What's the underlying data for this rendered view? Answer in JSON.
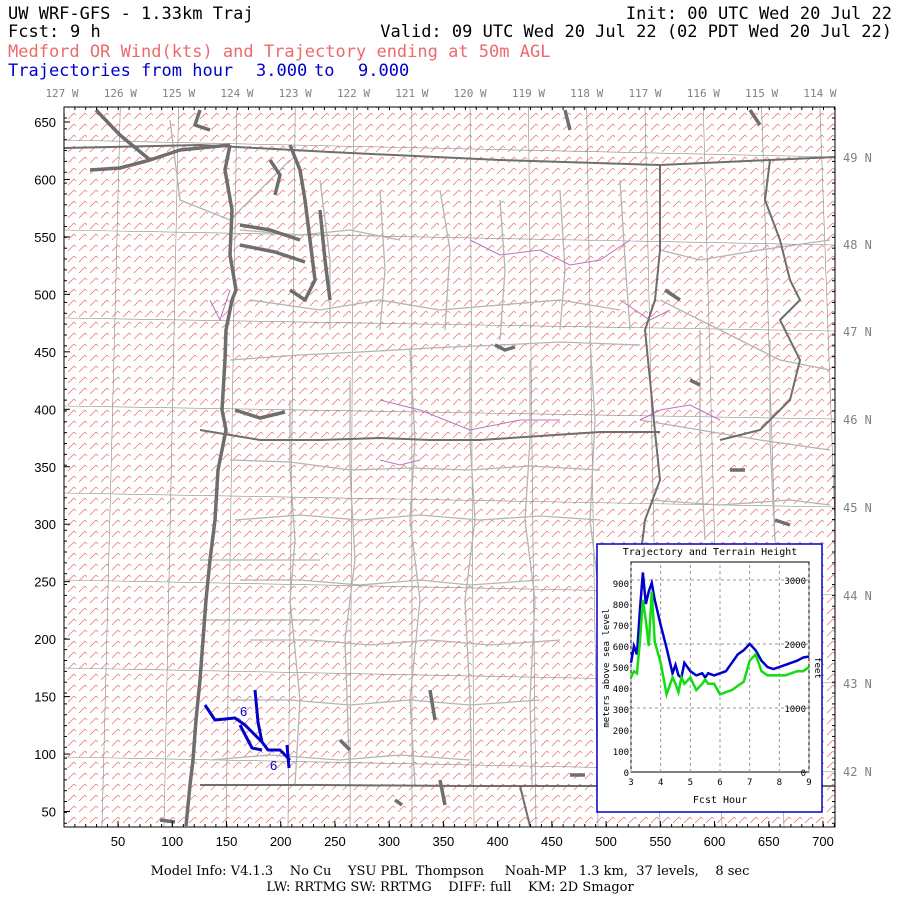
{
  "header": {
    "title": "UW WRF-GFS - 1.33km Traj",
    "init": "Init: 00 UTC Wed 20 Jul 22",
    "fcst_label": "Fcst:",
    "fcst_value": "9 h",
    "valid": "Valid: 09 UTC Wed 20 Jul 22 (02 PDT Wed 20 Jul 22)",
    "subtitle_red": "Medford OR Wind(kts) and Trajectory ending at 50m AGL",
    "traj_label": "Trajectories from hour",
    "traj_from": "3.000",
    "traj_to_word": "to",
    "traj_to": "9.000"
  },
  "map": {
    "lon_labels": [
      "127 W",
      "126 W",
      "125 W",
      "124 W",
      "123 W",
      "122 W",
      "121 W",
      "120 W",
      "119 W",
      "118 W",
      "117 W",
      "116 W",
      "115 W",
      "114 W"
    ],
    "lat_labels": [
      "49 N",
      "48 N",
      "47 N",
      "46 N",
      "45 N",
      "44 N",
      "43 N",
      "42 N"
    ],
    "y_ticks": [
      "650",
      "600",
      "550",
      "500",
      "450",
      "400",
      "350",
      "300",
      "250",
      "200",
      "150",
      "100",
      "50"
    ],
    "x_ticks": [
      "50",
      "100",
      "150",
      "200",
      "250",
      "300",
      "350",
      "400",
      "450",
      "500",
      "550",
      "600",
      "650",
      "700"
    ],
    "trajectory_hour_labels": [
      "6",
      "6"
    ],
    "colors": {
      "coast": "#6e6e6e",
      "state_border": "#6e6e6e",
      "county": "#b4b4b4",
      "wind": "#ee6a6a",
      "river": "#c070c0",
      "trajectory": "#0000cc"
    }
  },
  "inset": {
    "title": "Trajectory and Terrain Height",
    "ylabel_left": "meters above sea level",
    "ylabel_right": "feet",
    "xlabel": "Fcst Hour",
    "left_ticks": [
      "900",
      "800",
      "700",
      "600",
      "500",
      "400",
      "300",
      "200",
      "100",
      "0"
    ],
    "right_ticks": [
      "3000",
      "2000",
      "1000",
      "0"
    ],
    "x_ticks": [
      "3",
      "4",
      "5",
      "6",
      "7",
      "8",
      "9"
    ]
  },
  "chart_data": {
    "type": "line",
    "title": "Trajectory and Terrain Height",
    "xlabel": "Fcst Hour",
    "ylabel": "meters above sea level",
    "xlim": [
      3,
      9
    ],
    "ylim": [
      0,
      1000
    ],
    "grid": true,
    "series": [
      {
        "color": "#0000cc",
        "x": [
          3.0,
          3.1,
          3.2,
          3.3,
          3.4,
          3.5,
          3.6,
          3.7,
          3.8,
          4.0,
          4.2,
          4.4,
          4.5,
          4.6,
          4.7,
          4.8,
          5.0,
          5.2,
          5.4,
          5.5,
          5.6,
          5.8,
          6.0,
          6.2,
          6.4,
          6.6,
          6.8,
          7.0,
          7.2,
          7.4,
          7.6,
          7.8,
          8.0,
          8.2,
          8.4,
          8.6,
          8.8,
          9.0
        ],
        "values": [
          520,
          600,
          560,
          770,
          950,
          800,
          860,
          900,
          820,
          700,
          590,
          470,
          510,
          460,
          450,
          520,
          480,
          460,
          470,
          450,
          470,
          460,
          470,
          480,
          520,
          560,
          580,
          610,
          580,
          530,
          500,
          490,
          500,
          510,
          520,
          530,
          545,
          550
        ]
      },
      {
        "color": "#11dd11",
        "x": [
          3.0,
          3.1,
          3.2,
          3.3,
          3.4,
          3.5,
          3.6,
          3.7,
          3.8,
          4.0,
          4.2,
          4.4,
          4.5,
          4.6,
          4.7,
          4.8,
          5.0,
          5.2,
          5.4,
          5.5,
          5.6,
          5.8,
          6.0,
          6.2,
          6.4,
          6.6,
          6.8,
          7.0,
          7.2,
          7.4,
          7.6,
          7.8,
          8.0,
          8.2,
          8.4,
          8.6,
          8.8,
          9.0
        ],
        "values": [
          450,
          480,
          470,
          620,
          820,
          720,
          600,
          860,
          620,
          520,
          370,
          450,
          420,
          380,
          450,
          420,
          450,
          390,
          420,
          440,
          420,
          420,
          370,
          380,
          390,
          410,
          430,
          530,
          560,
          480,
          460,
          460,
          460,
          460,
          470,
          480,
          480,
          500
        ]
      }
    ]
  }
}
